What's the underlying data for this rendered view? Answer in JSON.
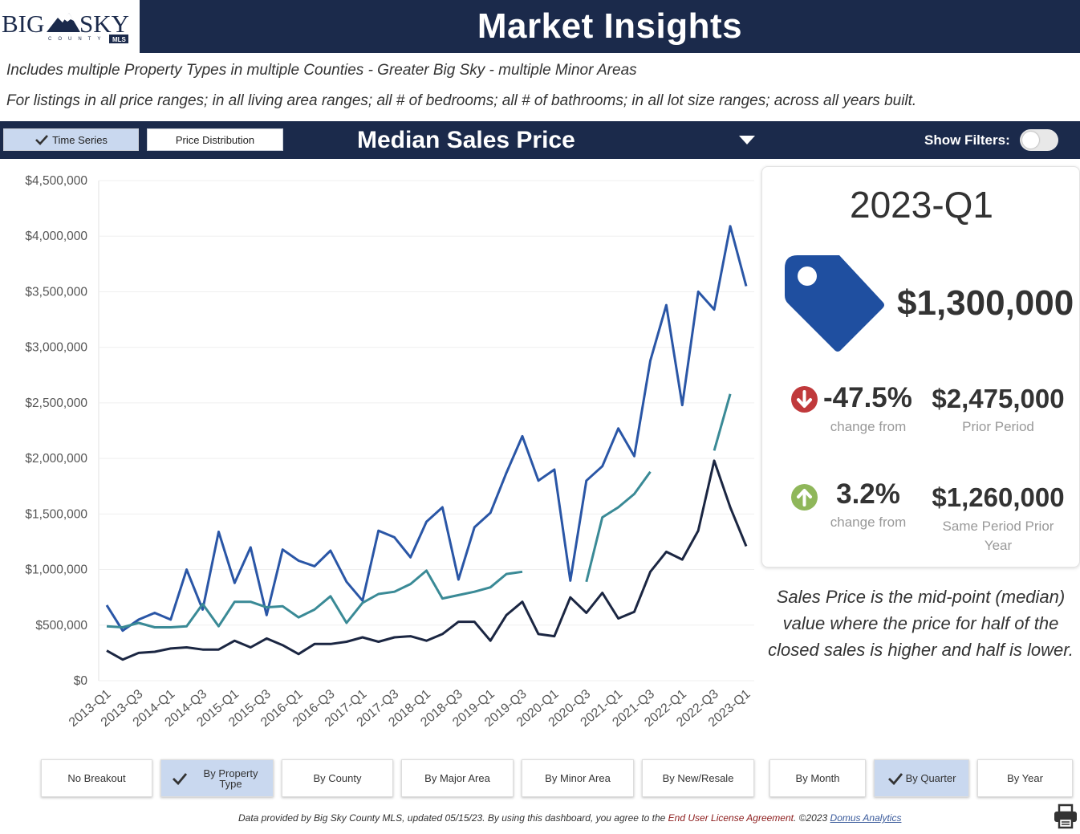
{
  "logo": {
    "text_left": "BIG",
    "text_right": "SKY",
    "text_sub": "COUNTY",
    "badge": "MLS"
  },
  "header": {
    "title": "Market Insights"
  },
  "subtitle": {
    "line1": "Includes multiple Property Types in multiple Counties - Greater Big Sky - multiple Minor Areas",
    "line2": "For listings in all price ranges; in all living area ranges; all # of bedrooms; all # of bathrooms; in all lot size ranges; across all years built."
  },
  "toolbar": {
    "time_series_label": "Time Series",
    "price_distribution_label": "Price Distribution",
    "measure_label": "Median Sales Price",
    "show_filters_label": "Show Filters:"
  },
  "chart_data": {
    "type": "line",
    "x": [
      "2013-Q1",
      "2013-Q2",
      "2013-Q3",
      "2013-Q4",
      "2014-Q1",
      "2014-Q2",
      "2014-Q3",
      "2014-Q4",
      "2015-Q1",
      "2015-Q2",
      "2015-Q3",
      "2015-Q4",
      "2016-Q1",
      "2016-Q2",
      "2016-Q3",
      "2016-Q4",
      "2017-Q1",
      "2017-Q2",
      "2017-Q3",
      "2017-Q4",
      "2018-Q1",
      "2018-Q2",
      "2018-Q3",
      "2018-Q4",
      "2019-Q1",
      "2019-Q2",
      "2019-Q3",
      "2019-Q4",
      "2020-Q1",
      "2020-Q2",
      "2020-Q3",
      "2020-Q4",
      "2021-Q1",
      "2021-Q2",
      "2021-Q3",
      "2021-Q4",
      "2022-Q1",
      "2022-Q2",
      "2022-Q3",
      "2022-Q4",
      "2023-Q1"
    ],
    "x_tick_labels": [
      "2013-Q1",
      "2013-Q3",
      "2014-Q1",
      "2014-Q3",
      "2015-Q1",
      "2015-Q3",
      "2016-Q1",
      "2016-Q3",
      "2017-Q1",
      "2017-Q3",
      "2018-Q1",
      "2018-Q3",
      "2019-Q1",
      "2019-Q3",
      "2020-Q1",
      "2020-Q3",
      "2021-Q1",
      "2021-Q3",
      "2022-Q1",
      "2022-Q3",
      "2023-Q1"
    ],
    "ylim": [
      0,
      4500000
    ],
    "y_ticks": [
      0,
      500000,
      1000000,
      1500000,
      2000000,
      2500000,
      3000000,
      3500000,
      4000000,
      4500000
    ],
    "y_tick_labels": [
      "$0",
      "$500,000",
      "$1,000,000",
      "$1,500,000",
      "$2,000,000",
      "$2,500,000",
      "$3,000,000",
      "$3,500,000",
      "$4,000,000",
      "$4,500,000"
    ],
    "grid": true,
    "series": [
      {
        "color": "#2a56a6",
        "values": [
          680000,
          450000,
          550000,
          610000,
          550000,
          1000000,
          640000,
          1340000,
          880000,
          1200000,
          590000,
          1180000,
          1080000,
          1030000,
          1170000,
          890000,
          720000,
          1350000,
          1290000,
          1110000,
          1430000,
          1560000,
          910000,
          1380000,
          1510000,
          1870000,
          2200000,
          1800000,
          1900000,
          900000,
          1800000,
          1930000,
          2270000,
          2020000,
          2880000,
          3380000,
          2480000,
          3500000,
          3340000,
          4090000,
          3550000
        ]
      },
      {
        "color": "#3a8a96",
        "values": [
          490000,
          480000,
          520000,
          480000,
          480000,
          490000,
          690000,
          490000,
          710000,
          710000,
          660000,
          670000,
          570000,
          640000,
          760000,
          520000,
          700000,
          780000,
          800000,
          870000,
          990000,
          740000,
          770000,
          800000,
          840000,
          960000,
          980000,
          null,
          null,
          null,
          890000,
          1470000,
          1560000,
          1680000,
          1880000,
          null,
          null,
          null,
          2070000,
          2580000,
          null
        ]
      },
      {
        "color": "#1b2642",
        "values": [
          270000,
          190000,
          250000,
          260000,
          290000,
          300000,
          280000,
          280000,
          360000,
          300000,
          380000,
          320000,
          240000,
          330000,
          330000,
          350000,
          390000,
          350000,
          390000,
          400000,
          360000,
          420000,
          530000,
          530000,
          360000,
          590000,
          710000,
          420000,
          400000,
          750000,
          610000,
          790000,
          560000,
          620000,
          980000,
          1160000,
          1090000,
          1350000,
          1980000,
          1560000,
          1210000
        ]
      }
    ]
  },
  "kpi": {
    "period": "2023-Q1",
    "value": "$1,300,000",
    "change1_pct": "-47.5%",
    "change1_label": "change from",
    "prior_value": "$2,475,000",
    "prior_label": "Prior Period",
    "change2_pct": "3.2%",
    "change2_label": "change from",
    "same_value": "$1,260,000",
    "same_label": "Same Period Prior Year",
    "down_color": "#c0393b",
    "up_color": "#8fb75a",
    "tag_color": "#1f4fa0"
  },
  "note": "Sales Price is the mid-point (median) value where the price for half of the closed sales is higher and half is lower.",
  "breakouts": {
    "none": "No Breakout",
    "property_type": "By Property Type",
    "county": "By County",
    "major_area": "By Major Area",
    "minor_area": "By Minor Area",
    "new_resale": "By New/Resale",
    "month": "By Month",
    "quarter": "By Quarter",
    "year": "By Year"
  },
  "footer": {
    "text1": "Data provided by Big Sky County MLS, updated 05/15/23.  By using this dashboard, you agree to the ",
    "link1": "End User License Agreement",
    "text2": ".  ©2023 ",
    "link2": "Domus Analytics"
  }
}
